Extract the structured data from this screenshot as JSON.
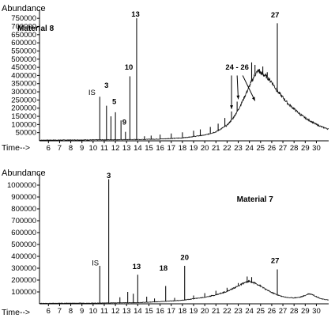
{
  "chart_data": [
    {
      "type": "line",
      "panel_label": "Material 8",
      "ylabel": "Abundance",
      "xlabel": "Time-->",
      "ylim": [
        0,
        775000
      ],
      "xlim": [
        5.2,
        31.1
      ],
      "y_ticks": [
        "750000",
        "700000",
        "650000",
        "600000",
        "550000",
        "500000",
        "450000",
        "400000",
        "350000",
        "300000",
        "250000",
        "200000",
        "150000",
        "100000",
        "50000"
      ],
      "y_tick_values": [
        750000,
        700000,
        650000,
        600000,
        550000,
        500000,
        450000,
        400000,
        350000,
        300000,
        250000,
        200000,
        150000,
        100000,
        50000
      ],
      "x_ticks": [
        "6",
        "7",
        "8",
        "9",
        "10",
        "11",
        "12",
        "13",
        "14",
        "15",
        "16",
        "17",
        "18",
        "19",
        "20",
        "21",
        "22",
        "23",
        "24",
        "25",
        "26",
        "27",
        "28",
        "29",
        "30"
      ],
      "x_tick_values": [
        6,
        7,
        8,
        9,
        10,
        11,
        12,
        13,
        14,
        15,
        16,
        17,
        18,
        19,
        20,
        21,
        22,
        23,
        24,
        25,
        26,
        27,
        28,
        29,
        30
      ],
      "baseline": [
        [
          5.2,
          4000
        ],
        [
          10.0,
          6000
        ],
        [
          14.0,
          8000
        ],
        [
          16.0,
          11000
        ],
        [
          18.0,
          18000
        ],
        [
          20.0,
          35000
        ],
        [
          21.0,
          55000
        ],
        [
          22.0,
          95000
        ],
        [
          22.5,
          135000
        ],
        [
          23.0,
          190000
        ],
        [
          23.5,
          260000
        ],
        [
          24.0,
          335000
        ],
        [
          24.5,
          405000
        ],
        [
          24.8,
          430000
        ],
        [
          25.0,
          415000
        ],
        [
          25.5,
          395000
        ],
        [
          26.0,
          360000
        ],
        [
          26.5,
          305000
        ],
        [
          27.0,
          265000
        ],
        [
          27.5,
          225000
        ],
        [
          28.0,
          195000
        ],
        [
          28.5,
          165000
        ],
        [
          29.0,
          140000
        ],
        [
          29.5,
          120000
        ],
        [
          30.0,
          100000
        ],
        [
          30.5,
          85000
        ],
        [
          31.1,
          72000
        ]
      ],
      "peaks": [
        {
          "x": 10.6,
          "y": 270000
        },
        {
          "x": 11.2,
          "y": 215000
        },
        {
          "x": 11.6,
          "y": 150000
        },
        {
          "x": 12.0,
          "y": 175000
        },
        {
          "x": 12.5,
          "y": 125000
        },
        {
          "x": 12.9,
          "y": 55000
        },
        {
          "x": 13.3,
          "y": 395000
        },
        {
          "x": 13.9,
          "y": 750000
        },
        {
          "x": 14.6,
          "y": 28000
        },
        {
          "x": 15.2,
          "y": 32000
        },
        {
          "x": 16.0,
          "y": 38000
        },
        {
          "x": 17.0,
          "y": 45000
        },
        {
          "x": 18.0,
          "y": 52000
        },
        {
          "x": 19.0,
          "y": 62000
        },
        {
          "x": 19.6,
          "y": 70000
        },
        {
          "x": 20.5,
          "y": 85000
        },
        {
          "x": 21.2,
          "y": 105000
        },
        {
          "x": 21.8,
          "y": 140000
        },
        {
          "x": 22.4,
          "y": 180000
        },
        {
          "x": 22.9,
          "y": 240000
        },
        {
          "x": 24.2,
          "y": 480000
        },
        {
          "x": 24.5,
          "y": 465000
        },
        {
          "x": 24.9,
          "y": 440000
        },
        {
          "x": 25.2,
          "y": 455000
        },
        {
          "x": 25.6,
          "y": 420000
        },
        {
          "x": 26.5,
          "y": 720000
        }
      ],
      "annotations": [
        {
          "text": "IS",
          "x": 9.9,
          "y": 280000
        },
        {
          "text": "3",
          "x": 11.2,
          "y": 325000
        },
        {
          "text": "5",
          "x": 11.9,
          "y": 225000
        },
        {
          "text": "9",
          "x": 12.8,
          "y": 100000
        },
        {
          "text": "10",
          "x": 13.2,
          "y": 435000
        },
        {
          "text": "13",
          "x": 13.8,
          "y": 760000
        },
        {
          "text": "24 - 26",
          "x": 22.9,
          "y": 435000
        },
        {
          "text": "27",
          "x": 26.3,
          "y": 755000
        }
      ],
      "arrows": [
        [
          22.4,
          400000,
          22.4,
          195000
        ],
        [
          22.9,
          400000,
          23.0,
          255000
        ],
        [
          23.4,
          400000,
          24.5,
          245000
        ]
      ]
    },
    {
      "type": "line",
      "panel_label": "Material 7",
      "ylabel": "Abundance",
      "xlabel": "Time-->",
      "ylim": [
        0,
        1060000
      ],
      "xlim": [
        5.2,
        31.1
      ],
      "y_ticks": [
        "1000000",
        "900000",
        "800000",
        "700000",
        "600000",
        "500000",
        "400000",
        "300000",
        "200000",
        "100000"
      ],
      "y_tick_values": [
        1000000,
        900000,
        800000,
        700000,
        600000,
        500000,
        400000,
        300000,
        200000,
        100000
      ],
      "x_ticks": [
        "6",
        "7",
        "8",
        "9",
        "10",
        "11",
        "12",
        "13",
        "14",
        "15",
        "16",
        "17",
        "18",
        "19",
        "20",
        "21",
        "22",
        "23",
        "24",
        "25",
        "26",
        "27",
        "28",
        "29",
        "30"
      ],
      "x_tick_values": [
        6,
        7,
        8,
        9,
        10,
        11,
        12,
        13,
        14,
        15,
        16,
        17,
        18,
        19,
        20,
        21,
        22,
        23,
        24,
        25,
        26,
        27,
        28,
        29,
        30
      ],
      "baseline": [
        [
          5.2,
          4000
        ],
        [
          10.0,
          6000
        ],
        [
          14.0,
          10000
        ],
        [
          16.0,
          18000
        ],
        [
          18.0,
          30000
        ],
        [
          20.0,
          55000
        ],
        [
          21.0,
          75000
        ],
        [
          22.0,
          105000
        ],
        [
          23.0,
          150000
        ],
        [
          23.5,
          175000
        ],
        [
          24.0,
          190000
        ],
        [
          24.5,
          175000
        ],
        [
          25.0,
          150000
        ],
        [
          25.5,
          120000
        ],
        [
          26.0,
          95000
        ],
        [
          26.5,
          75000
        ],
        [
          27.0,
          60000
        ],
        [
          27.5,
          52000
        ],
        [
          28.0,
          50000
        ],
        [
          28.5,
          55000
        ],
        [
          29.0,
          70000
        ],
        [
          29.3,
          85000
        ],
        [
          29.6,
          80000
        ],
        [
          30.0,
          60000
        ],
        [
          30.5,
          40000
        ],
        [
          31.1,
          32000
        ]
      ],
      "peaks": [
        {
          "x": 10.6,
          "y": 320000
        },
        {
          "x": 11.4,
          "y": 1050000
        },
        {
          "x": 12.4,
          "y": 55000
        },
        {
          "x": 13.1,
          "y": 100000
        },
        {
          "x": 13.6,
          "y": 85000
        },
        {
          "x": 14.0,
          "y": 245000
        },
        {
          "x": 14.8,
          "y": 60000
        },
        {
          "x": 15.5,
          "y": 45000
        },
        {
          "x": 16.5,
          "y": 150000
        },
        {
          "x": 17.3,
          "y": 50000
        },
        {
          "x": 18.2,
          "y": 320000
        },
        {
          "x": 19.0,
          "y": 70000
        },
        {
          "x": 20.0,
          "y": 90000
        },
        {
          "x": 21.0,
          "y": 110000
        },
        {
          "x": 22.0,
          "y": 135000
        },
        {
          "x": 23.0,
          "y": 175000
        },
        {
          "x": 23.8,
          "y": 230000
        },
        {
          "x": 24.2,
          "y": 225000
        },
        {
          "x": 26.5,
          "y": 290000
        }
      ],
      "annotations": [
        {
          "text": "IS",
          "x": 10.2,
          "y": 325000
        },
        {
          "text": "3",
          "x": 11.4,
          "y": 1060000
        },
        {
          "text": "13",
          "x": 13.9,
          "y": 295000
        },
        {
          "text": "18",
          "x": 16.3,
          "y": 280000
        },
        {
          "text": "20",
          "x": 18.2,
          "y": 370000
        },
        {
          "text": "27",
          "x": 26.3,
          "y": 345000
        },
        {
          "text": "Material 7",
          "x": 24.5,
          "y": 860000
        }
      ]
    }
  ],
  "colors": {
    "trace": "#111111",
    "axis": "#000000",
    "background": "#ffffff"
  }
}
